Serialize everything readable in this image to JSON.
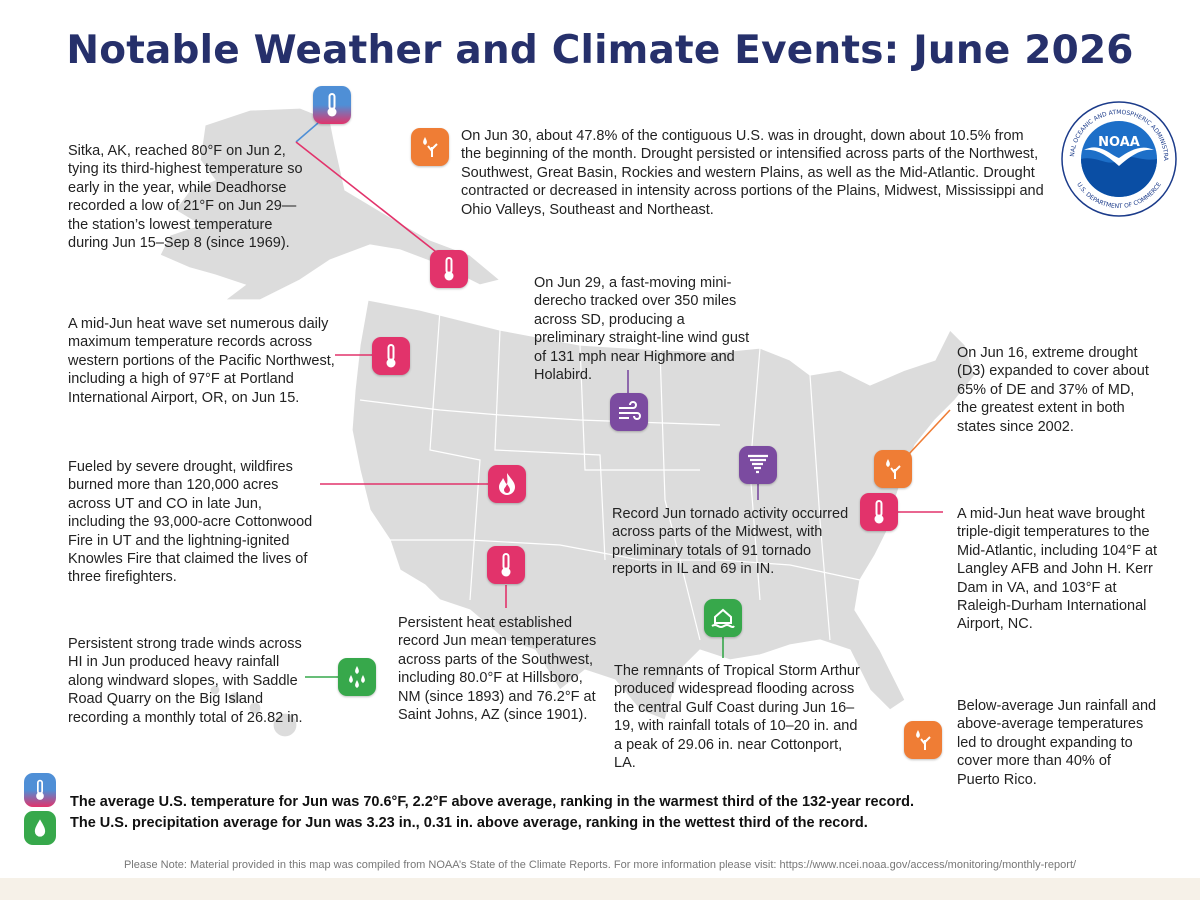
{
  "title": "Notable Weather and Climate Events: June 2026",
  "colors": {
    "title": "#26306b",
    "temperature": "#e2336b",
    "drought": "#ef7d35",
    "wind": "#7b4ba0",
    "flood": "#37a84b",
    "map_land": "#dcdcdc"
  },
  "events": {
    "alaska": "Sitka, AK, reached 80°F on Jun 2, tying its third-highest temperature so early in the year, while Deadhorse recorded a low of 21°F on Jun 29—the station’s lowest temperature during Jun 15–Sep 8 (since 1969).",
    "drought_us": "On Jun 30, about 47.8% of the contiguous U.S. was in drought, down about 10.5% from the beginning of the month. Drought persisted or intensified across parts of the Northwest, Southwest, Great Basin, Rockies and western Plains, as well as the Mid-Atlantic. Drought contracted or decreased in intensity across portions of the Plains, Midwest, Mississippi and Ohio Valleys, Southeast and Northeast.",
    "derecho": "On Jun 29, a fast-moving mini-derecho tracked over 350 miles across SD, producing a preliminary straight-line wind gust of 131 mph near Highmore and Holabird.",
    "pnw_heat": "A mid-Jun heat wave set numerous daily maximum temperature records across western portions of the Pacific Northwest, including a high of 97°F at Portland International Airport, OR, on Jun 15.",
    "de_md_drought": "On Jun 16, extreme drought (D3) expanded to cover about 65% of DE and 37% of MD, the greatest extent in both states since 2002.",
    "wildfires": "Fueled by severe drought, wildfires burned more than 120,000 acres across UT and CO in late Jun, including the 93,000-acre Cottonwood Fire in UT and the lightning-ignited Knowles Fire that claimed the lives of three firefighters.",
    "tornado": "Record Jun tornado activity occurred across parts of the Midwest, with preliminary totals of 91 tornado reports in IL and 69 in IN.",
    "midatlantic_heat": "A mid-Jun heat wave brought triple-digit temperatures to the Mid-Atlantic, including 104°F at Langley AFB and John H. Kerr Dam in VA, and 103°F at Raleigh-Durham International Airport, NC.",
    "southwest_heat": "Persistent heat established record Jun mean temperatures across parts of the Southwest, including 80.0°F at Hillsboro, NM (since 1893) and 76.2°F at Saint Johns, AZ (since 1901).",
    "hawaii": "Persistent strong trade winds across HI in Jun produced heavy rainfall along windward slopes, with Saddle Road Quarry on the Big Island recording a monthly total of 26.82 in.",
    "arthur": "The remnants of Tropical Storm Arthur produced widespread flooding across the central Gulf Coast during Jun 16–19, with rainfall totals of 10–20 in. and a peak of 29.06 in. near Cottonport, LA.",
    "puerto_rico": "Below-average Jun rainfall and above-average temperatures led to drought expanding to cover more than 40% of Puerto Rico."
  },
  "summary": {
    "temperature": "The average U.S. temperature for Jun was 70.6°F, 2.2°F above average, ranking in the warmest third of the 132-year record.",
    "precipitation": "The U.S. precipitation average for Jun was 3.23 in., 0.31 in. above average, ranking in the wettest third of the record."
  },
  "note": "Please Note: Material provided in this map was compiled from NOAA’s State of the Climate Reports. For more information please visit: https://www.ncei.noaa.gov/access/monitoring/monthly-report/",
  "logo": {
    "center_text": "NOAA",
    "ring_top": "NATIONAL OCEANIC AND ATMOSPHERIC ADMINISTRATION",
    "ring_bottom": "U.S. DEPARTMENT OF COMMERCE"
  }
}
